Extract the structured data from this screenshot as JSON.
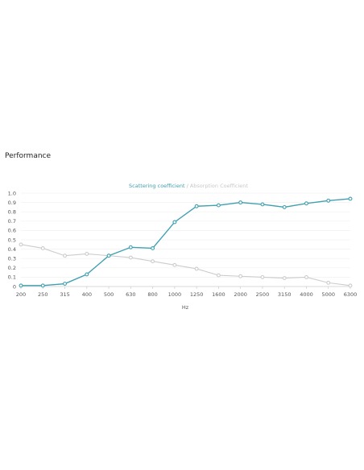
{
  "section": {
    "title": "Performance"
  },
  "chart_data": {
    "type": "line",
    "legend": {
      "placement": "top-center",
      "separator": " / ",
      "entries": [
        "Scattering coefficient",
        "Absorption Coefficient"
      ]
    },
    "categories": [
      "200",
      "250",
      "315",
      "400",
      "500",
      "630",
      "800",
      "1000",
      "1250",
      "1600",
      "2000",
      "2500",
      "3150",
      "4000",
      "5000",
      "6300"
    ],
    "series": [
      {
        "name": "Scattering coefficient",
        "color": "#3fa0b0",
        "values": [
          0.01,
          0.01,
          0.03,
          0.13,
          0.33,
          0.42,
          0.41,
          0.69,
          0.86,
          0.87,
          0.9,
          0.88,
          0.85,
          0.89,
          0.92,
          0.94
        ]
      },
      {
        "name": "Absorption Coefficient",
        "color": "#cccccc",
        "values": [
          0.45,
          0.41,
          0.33,
          0.35,
          0.33,
          0.31,
          0.27,
          0.23,
          0.19,
          0.12,
          0.11,
          0.1,
          0.09,
          0.1,
          0.04,
          0.01
        ]
      }
    ],
    "xlabel": "Hz",
    "ylabel": "",
    "ylim": [
      0,
      1.0
    ],
    "yticks": [
      "0",
      "0.1",
      "0.2",
      "0.3",
      "0.4",
      "0.5",
      "0.6",
      "0.7",
      "0.8",
      "0.9",
      "1.0"
    ],
    "grid": true
  }
}
